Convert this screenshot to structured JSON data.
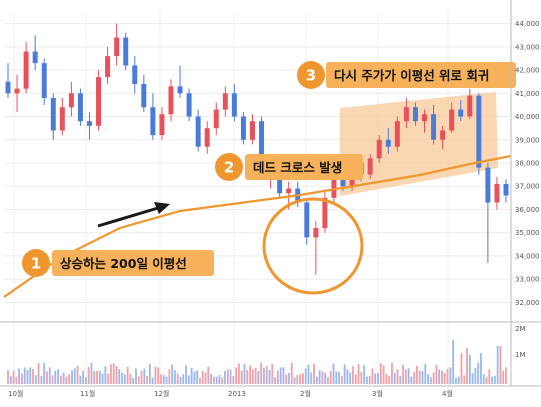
{
  "chart_data": {
    "type": "candlestick",
    "x_ticks": [
      "10월",
      "11월",
      "12월",
      "2013",
      "2월",
      "3월",
      "4월"
    ],
    "y_ticks": [
      32000,
      33000,
      34000,
      35000,
      36000,
      37000,
      38000,
      39000,
      40000,
      41000,
      42000,
      43000,
      44000
    ],
    "ylim": [
      31500,
      44500
    ],
    "volume_ticks": [
      "2M",
      "1M"
    ],
    "grid": true,
    "ma200": {
      "name": "200일 이평선",
      "x": [
        "10월",
        "11월",
        "12월",
        "2013",
        "2월",
        "3월",
        "4월"
      ],
      "values": [
        32600,
        34300,
        35400,
        36100,
        36800,
        37300,
        37800
      ]
    },
    "candle_ohlc_approx": [
      [
        41500,
        42300,
        40800,
        41000
      ],
      [
        41000,
        41800,
        40200,
        41200
      ],
      [
        41200,
        43200,
        41000,
        42800
      ],
      [
        42800,
        43500,
        42000,
        42300
      ],
      [
        42300,
        42500,
        40500,
        40800
      ],
      [
        40800,
        41000,
        39000,
        39400
      ],
      [
        39400,
        40800,
        39200,
        40400
      ],
      [
        40400,
        41500,
        40000,
        41000
      ],
      [
        41000,
        41200,
        39600,
        39800
      ],
      [
        39800,
        40200,
        39000,
        39600
      ],
      [
        39600,
        42000,
        39400,
        41700
      ],
      [
        41700,
        43000,
        41400,
        42600
      ],
      [
        42600,
        44000,
        42200,
        43400
      ],
      [
        43400,
        43600,
        42000,
        42200
      ],
      [
        42200,
        42600,
        41000,
        41400
      ],
      [
        41400,
        41800,
        40200,
        40400
      ],
      [
        40400,
        41000,
        39000,
        39200
      ],
      [
        39200,
        40400,
        39000,
        40100
      ],
      [
        40100,
        41600,
        39800,
        41300
      ],
      [
        41300,
        42200,
        40800,
        41000
      ],
      [
        41000,
        41200,
        39800,
        40000
      ],
      [
        40000,
        40300,
        38500,
        38700
      ],
      [
        38700,
        39800,
        38400,
        39500
      ],
      [
        39500,
        40600,
        39200,
        40300
      ],
      [
        40300,
        41300,
        40000,
        41000
      ],
      [
        41000,
        41400,
        39800,
        40000
      ],
      [
        40000,
        40200,
        38800,
        39000
      ],
      [
        39000,
        40100,
        38800,
        39800
      ],
      [
        39800,
        40000,
        37400,
        37600
      ],
      [
        37600,
        38200,
        36900,
        37900
      ],
      [
        37900,
        38100,
        36500,
        36700
      ],
      [
        36700,
        37200,
        36000,
        36900
      ],
      [
        36900,
        37200,
        36100,
        36300
      ],
      [
        36300,
        36500,
        34500,
        34800
      ],
      [
        34800,
        35500,
        33200,
        35200
      ],
      [
        35200,
        36800,
        35000,
        36500
      ],
      [
        36500,
        37700,
        36300,
        37400
      ],
      [
        37400,
        37600,
        36800,
        37000
      ],
      [
        37000,
        38200,
        36800,
        38000
      ],
      [
        38000,
        38300,
        37200,
        37500
      ],
      [
        37500,
        38400,
        37300,
        38200
      ],
      [
        38200,
        39200,
        38000,
        39000
      ],
      [
        39000,
        39500,
        38400,
        38700
      ],
      [
        38700,
        40000,
        38500,
        39800
      ],
      [
        39800,
        40800,
        39500,
        40400
      ],
      [
        40400,
        40600,
        39600,
        39800
      ],
      [
        39800,
        40300,
        39300,
        40100
      ],
      [
        40100,
        40500,
        38800,
        39000
      ],
      [
        39000,
        39600,
        38600,
        39400
      ],
      [
        39400,
        40600,
        39300,
        40300
      ],
      [
        40300,
        40700,
        39800,
        40000
      ],
      [
        40000,
        41200,
        39900,
        40900
      ],
      [
        40900,
        41000,
        37500,
        37800
      ],
      [
        37800,
        38000,
        33700,
        36300
      ],
      [
        36300,
        37400,
        36000,
        37100
      ],
      [
        37100,
        37300,
        36300,
        36600
      ]
    ],
    "annotations": [
      {
        "number": "1",
        "text": "상승하는 200일 이평선"
      },
      {
        "number": "2",
        "text": "데드 크로스 발생"
      },
      {
        "number": "3",
        "text": "다시 주가가 이평선 위로 회귀"
      }
    ]
  },
  "colors": {
    "up": "#e8505b",
    "down": "#4a7bd8",
    "up_volume": "#f0a0a8",
    "down_volume": "#9bb8ec",
    "ma": "#f0962e",
    "callout_bg": "#f6b15a",
    "callout_num": "#f0962e",
    "highlight": "#f8c99a",
    "grid": "#ececec",
    "axis": "#bbbbbb"
  }
}
